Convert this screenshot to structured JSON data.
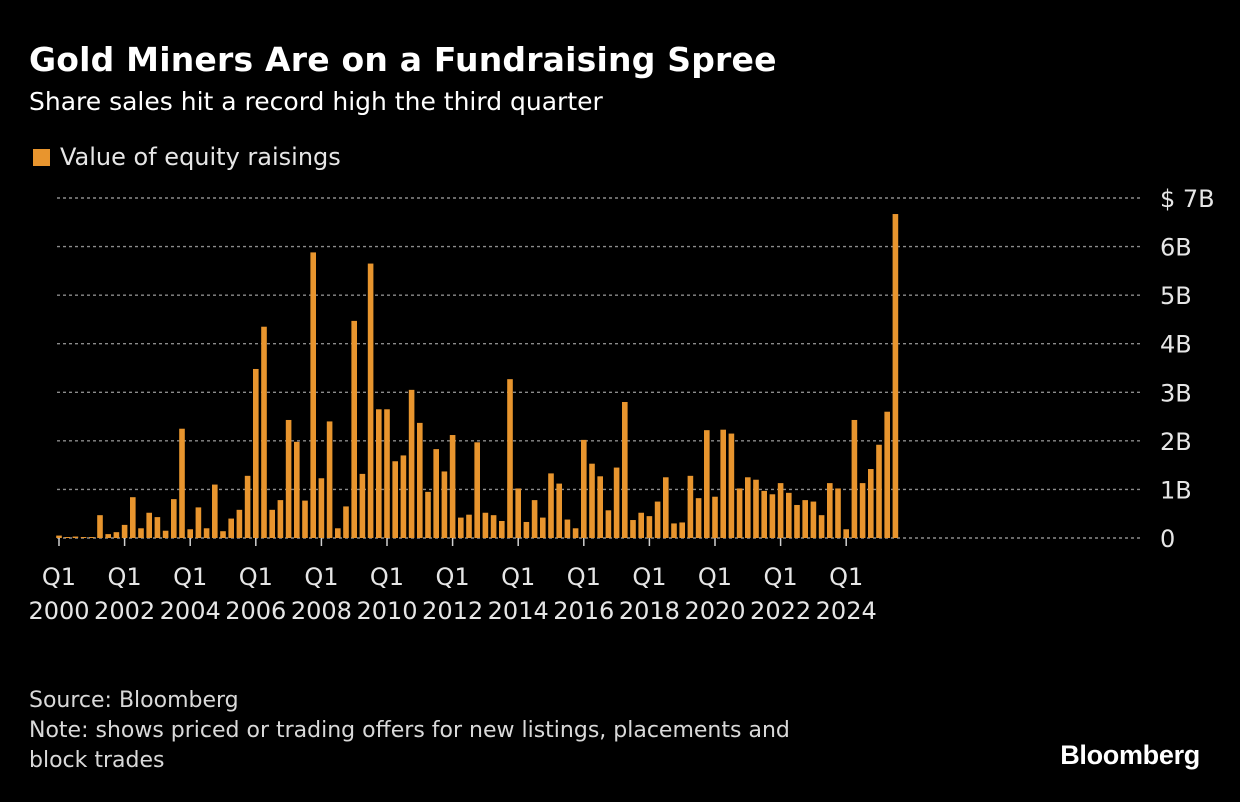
{
  "colors": {
    "background": "#000000",
    "bar": "#e8952e",
    "grid": "#8c8c8c",
    "axis_text": "#e6e6e6"
  },
  "header": {
    "title": "Gold Miners Are on a Fundraising Spree",
    "subtitle": "Share sales hit a record high the third quarter"
  },
  "legend": {
    "label": "Value of equity raisings"
  },
  "footer": {
    "source": "Source: Bloomberg",
    "note_line1": "Note: shows priced or trading offers for new listings, placements and",
    "note_line2": "block trades"
  },
  "brand": "Bloomberg",
  "chart_data": {
    "type": "bar",
    "y_tick_labels": [
      "0",
      "1B",
      "2B",
      "3B",
      "4B",
      "5B",
      "6B",
      "$ 7B"
    ],
    "ylim": [
      0,
      7
    ],
    "x_tick_labels": [
      {
        "quarter": "Q1",
        "year": "2000",
        "index": 0
      },
      {
        "quarter": "Q1",
        "year": "2002",
        "index": 8
      },
      {
        "quarter": "Q1",
        "year": "2004",
        "index": 16
      },
      {
        "quarter": "Q1",
        "year": "2006",
        "index": 24
      },
      {
        "quarter": "Q1",
        "year": "2008",
        "index": 32
      },
      {
        "quarter": "Q1",
        "year": "2010",
        "index": 40
      },
      {
        "quarter": "Q1",
        "year": "2012",
        "index": 48
      },
      {
        "quarter": "Q1",
        "year": "2014",
        "index": 56
      },
      {
        "quarter": "Q1",
        "year": "2016",
        "index": 64
      },
      {
        "quarter": "Q1",
        "year": "2018",
        "index": 72
      },
      {
        "quarter": "Q1",
        "year": "2020",
        "index": 80
      },
      {
        "quarter": "Q1",
        "year": "2022",
        "index": 88
      },
      {
        "quarter": "Q1",
        "year": "2024",
        "index": 96
      }
    ],
    "grid": true,
    "legend_position": "top-left",
    "series": [
      {
        "name": "Value of equity raisings",
        "values": [
          0.05,
          0.02,
          0.03,
          0.02,
          0.02,
          0.47,
          0.08,
          0.12,
          0.27,
          0.84,
          0.2,
          0.52,
          0.43,
          0.15,
          0.8,
          2.25,
          0.18,
          0.63,
          0.2,
          1.1,
          0.14,
          0.4,
          0.58,
          1.28,
          3.48,
          4.35,
          0.58,
          0.78,
          2.43,
          1.98,
          0.77,
          5.88,
          1.23,
          2.4,
          0.2,
          0.65,
          4.47,
          1.32,
          5.65,
          2.65,
          2.65,
          1.58,
          1.7,
          3.05,
          2.37,
          0.95,
          1.83,
          1.37,
          2.12,
          0.42,
          0.48,
          1.97,
          0.52,
          0.47,
          0.35,
          3.27,
          1.02,
          0.33,
          0.78,
          0.42,
          1.33,
          1.12,
          0.38,
          0.2,
          2.02,
          1.53,
          1.27,
          0.57,
          1.45,
          2.8,
          0.37,
          0.52,
          0.45,
          0.75,
          1.25,
          0.3,
          0.32,
          1.28,
          0.82,
          2.22,
          0.85,
          2.23,
          2.15,
          1.02,
          1.25,
          1.2,
          0.97,
          0.9,
          1.13,
          0.93,
          0.68,
          0.78,
          0.75,
          0.47,
          1.13,
          1.02,
          0.18,
          2.43,
          1.13,
          1.42,
          1.92,
          2.6,
          6.67
        ]
      }
    ]
  }
}
